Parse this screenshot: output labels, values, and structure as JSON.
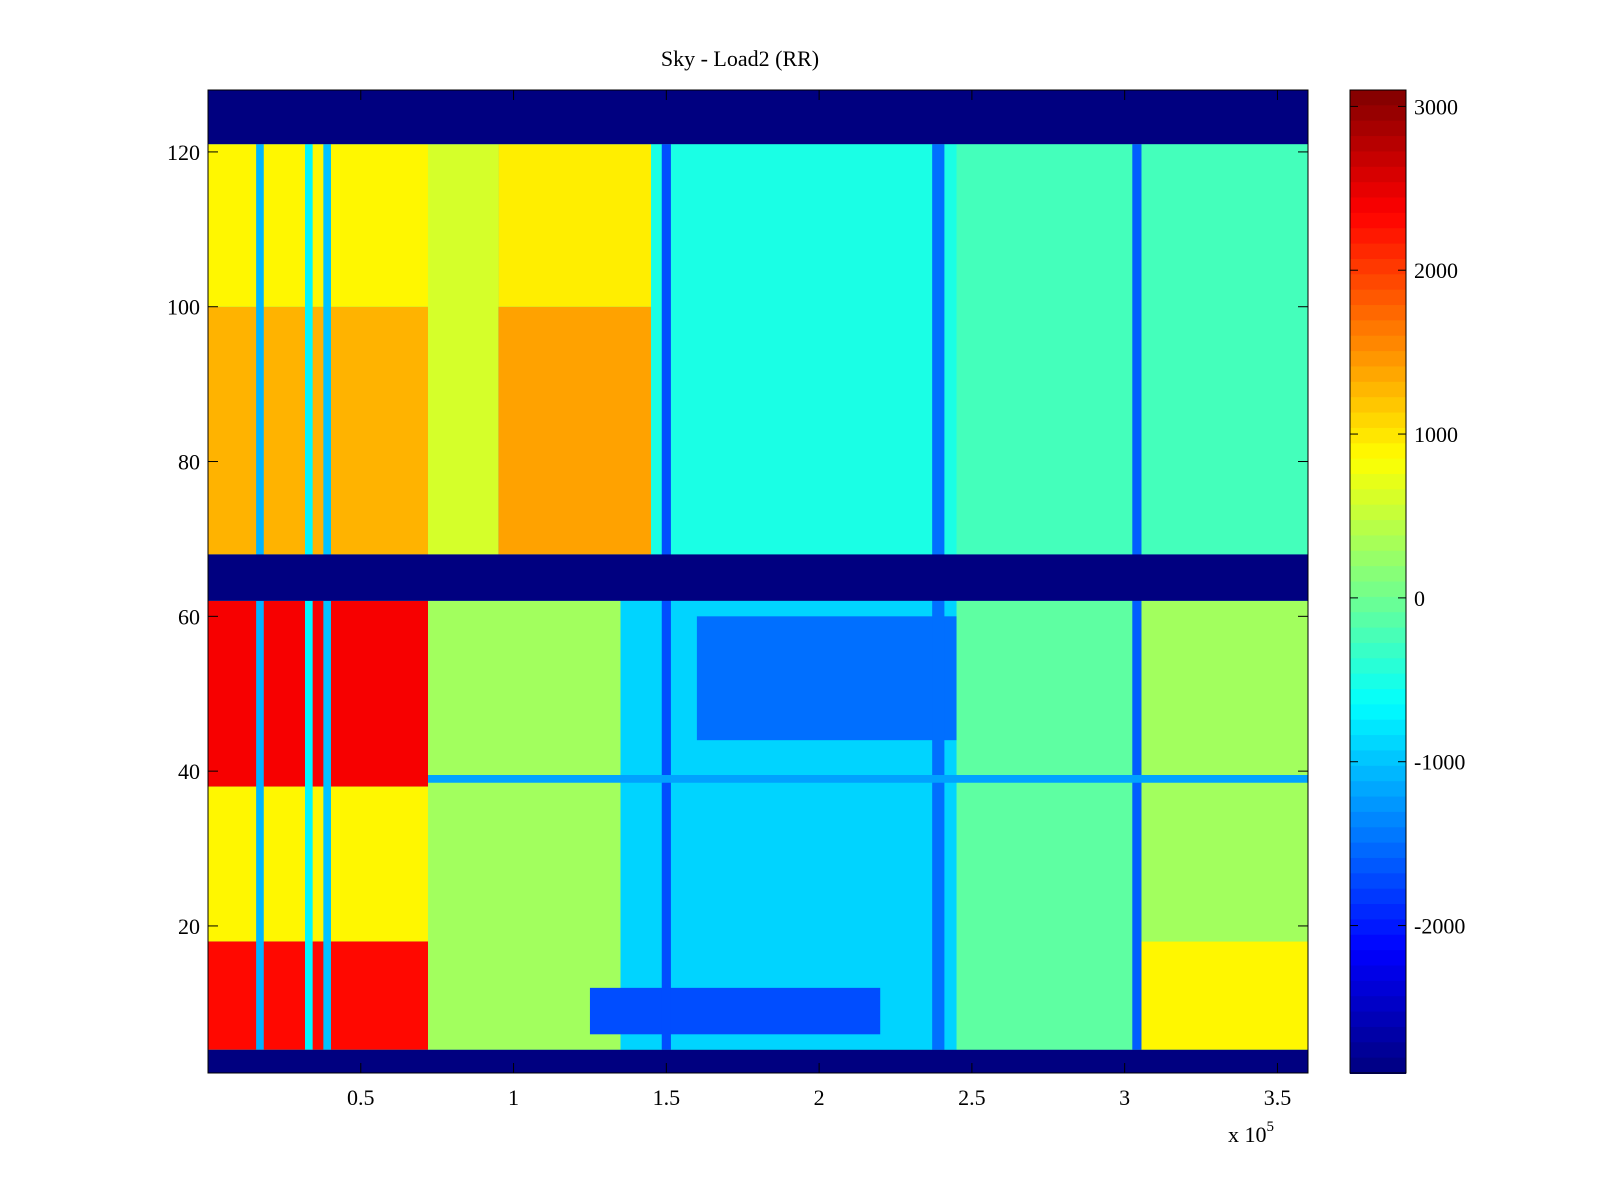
{
  "chart_data": {
    "type": "heatmap",
    "title": "Sky - Load2 (RR)",
    "xlabel": "",
    "ylabel": "",
    "x_multiplier_label": "x 10",
    "x_multiplier_exponent": "5",
    "xlim": [
      0.0,
      3.6
    ],
    "ylim": [
      1,
      128
    ],
    "x_ticks": [
      0.5,
      1,
      1.5,
      2,
      2.5,
      3,
      3.5
    ],
    "x_tick_labels": [
      "0.5",
      "1",
      "1.5",
      "2",
      "2.5",
      "3",
      "3.5"
    ],
    "y_ticks": [
      20,
      40,
      60,
      80,
      100,
      120
    ],
    "y_tick_labels": [
      "20",
      "40",
      "60",
      "80",
      "100",
      "120"
    ],
    "colormap": "jet",
    "clim": [
      -2900,
      3100
    ],
    "colorbar_ticks": [
      3000,
      2000,
      1000,
      0,
      -1000,
      -2000
    ],
    "colorbar_tick_labels": [
      "3000",
      "2000",
      "1000",
      "0",
      "-1000",
      "-2000"
    ],
    "grid": false,
    "masked_row_ranges": [
      {
        "y_from": 1,
        "y_to": 4,
        "value": -2900
      },
      {
        "y_from": 62,
        "y_to": 68,
        "value": -2900
      },
      {
        "y_from": 121,
        "y_to": 128,
        "value": -2900
      }
    ],
    "regions": [
      {
        "x_from": 0.0,
        "x_to": 0.72,
        "y_from": 4,
        "y_to": 18,
        "value": 2300
      },
      {
        "x_from": 0.0,
        "x_to": 0.72,
        "y_from": 38,
        "y_to": 62,
        "value": 2400
      },
      {
        "x_from": 0.0,
        "x_to": 0.72,
        "y_from": 18,
        "y_to": 38,
        "value": 900
      },
      {
        "x_from": 0.0,
        "x_to": 0.72,
        "y_from": 68,
        "y_to": 100,
        "value": 1300
      },
      {
        "x_from": 0.0,
        "x_to": 0.72,
        "y_from": 100,
        "y_to": 121,
        "value": 900
      },
      {
        "x_from": 0.95,
        "x_to": 1.45,
        "y_from": 68,
        "y_to": 100,
        "value": 1400
      },
      {
        "x_from": 0.95,
        "x_to": 1.45,
        "y_from": 100,
        "y_to": 121,
        "value": 950
      },
      {
        "x_from": 0.72,
        "x_to": 0.95,
        "y_from": 68,
        "y_to": 121,
        "value": 600
      },
      {
        "x_from": 1.45,
        "x_to": 2.45,
        "y_from": 68,
        "y_to": 121,
        "value": -500
      },
      {
        "x_from": 2.45,
        "x_to": 3.6,
        "y_from": 68,
        "y_to": 121,
        "value": -250
      },
      {
        "x_from": 0.72,
        "x_to": 1.35,
        "y_from": 4,
        "y_to": 62,
        "value": 300
      },
      {
        "x_from": 1.35,
        "x_to": 2.45,
        "y_from": 4,
        "y_to": 62,
        "value": -900
      },
      {
        "x_from": 1.6,
        "x_to": 2.45,
        "y_from": 44,
        "y_to": 60,
        "value": -1500
      },
      {
        "x_from": 1.25,
        "x_to": 2.2,
        "y_from": 6,
        "y_to": 12,
        "value": -1700
      },
      {
        "x_from": 2.45,
        "x_to": 3.05,
        "y_from": 4,
        "y_to": 62,
        "value": -100
      },
      {
        "x_from": 3.05,
        "x_to": 3.6,
        "y_from": 4,
        "y_to": 18,
        "value": 900
      },
      {
        "x_from": 3.05,
        "x_to": 3.6,
        "y_from": 18,
        "y_to": 62,
        "value": 300
      }
    ],
    "vertical_stripes": [
      {
        "x": 0.17,
        "width": 0.025,
        "y_from": 4,
        "y_to": 121,
        "value": -1100
      },
      {
        "x": 0.33,
        "width": 0.025,
        "y_from": 4,
        "y_to": 121,
        "value": -700
      },
      {
        "x": 0.39,
        "width": 0.025,
        "y_from": 4,
        "y_to": 121,
        "value": -1000
      },
      {
        "x": 1.5,
        "width": 0.03,
        "y_from": 4,
        "y_to": 121,
        "value": -1700
      },
      {
        "x": 2.39,
        "width": 0.04,
        "y_from": 4,
        "y_to": 121,
        "value": -1500
      },
      {
        "x": 3.04,
        "width": 0.03,
        "y_from": 4,
        "y_to": 121,
        "value": -1600
      }
    ],
    "horizontal_stripes": [
      {
        "y": 39,
        "height": 1,
        "x_from": 0.72,
        "x_to": 3.6,
        "value": -1200
      }
    ]
  }
}
